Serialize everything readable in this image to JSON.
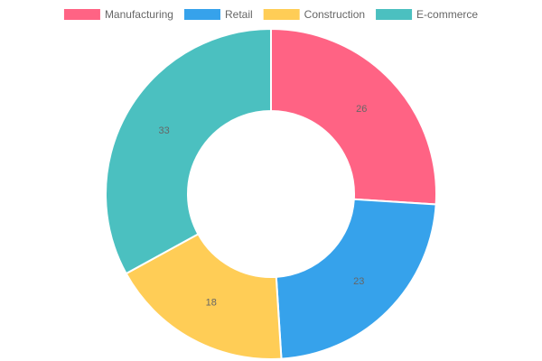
{
  "chart_data": {
    "type": "doughnut",
    "categories": [
      "Manufacturing",
      "Retail",
      "Construction",
      "E-commerce"
    ],
    "values": [
      26,
      23,
      18,
      33
    ],
    "colors": [
      "#ff6384",
      "#36a2eb",
      "#ffcd56",
      "#4bc0c0"
    ],
    "legend": "top"
  }
}
